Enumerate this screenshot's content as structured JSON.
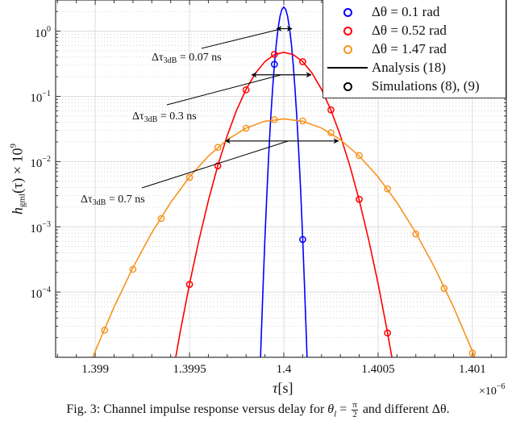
{
  "chart_data": {
    "type": "line",
    "xlabel": {
      "symbol": "τ",
      "unit": "[s]"
    },
    "x_multiplier": {
      "base": "×10",
      "exp": "−6"
    },
    "ylabel": {
      "base": "h",
      "sub": "gml",
      "arg": "(τ) × 10",
      "exp": "9"
    },
    "xlim": [
      1.39879,
      1.40118
    ],
    "ylim": [
      1e-05,
      3.0
    ],
    "yscale": "log",
    "grid": true,
    "legend_placement": "top-right",
    "x_ticks": [
      {
        "value": 1.399,
        "label": "1.399"
      },
      {
        "value": 1.3995,
        "label": "1.3995"
      },
      {
        "value": 1.4,
        "label": "1.4"
      },
      {
        "value": 1.4005,
        "label": "1.4005"
      },
      {
        "value": 1.401,
        "label": "1.401"
      }
    ],
    "y_ticks": [
      {
        "value": 1,
        "base": "10",
        "exp": "0"
      },
      {
        "value": 0.1,
        "base": "10",
        "exp": "−1"
      },
      {
        "value": 0.01,
        "base": "10",
        "exp": "−2"
      },
      {
        "value": 0.001,
        "base": "10",
        "exp": "−3"
      },
      {
        "value": 0.0001,
        "base": "10",
        "exp": "−4"
      }
    ],
    "series": [
      {
        "name": "Δθ = 0.1 rad",
        "color": "#0000ff",
        "analysis": [
          [
            1.39987,
            2.5e-06
          ],
          [
            1.39988,
            1.87e-05
          ],
          [
            1.39989,
            0.000122
          ],
          [
            1.3999,
            0.000675
          ],
          [
            1.39991,
            0.00318
          ],
          [
            1.39992,
            0.0127
          ],
          [
            1.39993,
            0.043
          ],
          [
            1.39994,
            0.1245
          ],
          [
            1.39995,
            0.305
          ],
          [
            1.39996,
            0.635
          ],
          [
            1.39997,
            1.12
          ],
          [
            1.39998,
            1.69
          ],
          [
            1.39999,
            2.16
          ],
          [
            1.4,
            2.34
          ],
          [
            1.40001,
            2.16
          ],
          [
            1.40002,
            1.69
          ],
          [
            1.40003,
            1.12
          ],
          [
            1.40004,
            0.635
          ],
          [
            1.40005,
            0.305
          ],
          [
            1.40006,
            0.1245
          ],
          [
            1.40007,
            0.043
          ],
          [
            1.40008,
            0.0127
          ],
          [
            1.40009,
            0.00318
          ],
          [
            1.4001,
            0.000675
          ],
          [
            1.40011,
            0.000122
          ],
          [
            1.40012,
            1.87e-05
          ],
          [
            1.40013,
            2.5e-06
          ]
        ],
        "simulation": [
          [
            1.39995,
            0.31
          ],
          [
            1.4001,
            0.00064
          ]
        ]
      },
      {
        "name": "Δθ = 0.52 rad",
        "color": "#ff0000",
        "analysis": [
          [
            1.3994,
            3.66e-06
          ],
          [
            1.39945,
            2.4e-05
          ],
          [
            1.3995,
            0.000134
          ],
          [
            1.39955,
            0.00063
          ],
          [
            1.3996,
            0.00254
          ],
          [
            1.39965,
            0.00864
          ],
          [
            1.3997,
            0.025
          ],
          [
            1.39975,
            0.0614
          ],
          [
            1.3998,
            0.128
          ],
          [
            1.39985,
            0.227
          ],
          [
            1.3999,
            0.342
          ],
          [
            1.39995,
            0.437
          ],
          [
            1.4,
            0.474
          ],
          [
            1.40005,
            0.437
          ],
          [
            1.4001,
            0.342
          ],
          [
            1.40015,
            0.227
          ],
          [
            1.4002,
            0.128
          ],
          [
            1.40025,
            0.0614
          ],
          [
            1.4003,
            0.025
          ],
          [
            1.40035,
            0.00864
          ],
          [
            1.4004,
            0.00254
          ],
          [
            1.40045,
            0.00063
          ],
          [
            1.4005,
            0.000134
          ],
          [
            1.40055,
            2.4e-05
          ],
          [
            1.4006,
            3.66e-06
          ]
        ],
        "simulation": [
          [
            1.39995,
            0.44
          ],
          [
            1.4001,
            0.34
          ],
          [
            1.3998,
            0.126
          ],
          [
            1.40025,
            0.062
          ],
          [
            1.39965,
            0.0086
          ],
          [
            1.4004,
            0.00264
          ],
          [
            1.3995,
            0.000131
          ],
          [
            1.40055,
            2.36e-05
          ]
        ]
      },
      {
        "name": "Δθ = 1.47 rad",
        "color": "#f7931e",
        "analysis": [
          [
            1.3989,
            2.2e-06
          ],
          [
            1.399,
            1.24e-05
          ],
          [
            1.3991,
            5.91e-05
          ],
          [
            1.3992,
            0.000238
          ],
          [
            1.3993,
            0.000814
          ],
          [
            1.3994,
            0.00236
          ],
          [
            1.3995,
            0.00582
          ],
          [
            1.3996,
            0.01218
          ],
          [
            1.3997,
            0.0216
          ],
          [
            1.3998,
            0.0326
          ],
          [
            1.3999,
            0.0416
          ],
          [
            1.4,
            0.0452
          ],
          [
            1.4001,
            0.0416
          ],
          [
            1.4002,
            0.0326
          ],
          [
            1.4003,
            0.0216
          ],
          [
            1.4004,
            0.01218
          ],
          [
            1.4005,
            0.00582
          ],
          [
            1.4006,
            0.00236
          ],
          [
            1.4007,
            0.000814
          ],
          [
            1.4008,
            0.000238
          ],
          [
            1.4009,
            5.91e-05
          ],
          [
            1.401,
            1.24e-05
          ],
          [
            1.4011,
            2.2e-06
          ]
        ],
        "simulation": [
          [
            1.39995,
            0.044
          ],
          [
            1.4001,
            0.042
          ],
          [
            1.3998,
            0.0325
          ],
          [
            1.40025,
            0.0277
          ],
          [
            1.39965,
            0.0165
          ],
          [
            1.4004,
            0.0124
          ],
          [
            1.3995,
            0.00573
          ],
          [
            1.40055,
            0.00382
          ],
          [
            1.39935,
            0.00134
          ],
          [
            1.4007,
            0.000776
          ],
          [
            1.3992,
            0.000223
          ],
          [
            1.40085,
            0.000114
          ],
          [
            1.39905,
            2.6e-05
          ],
          [
            1.401,
            1.16e-05
          ]
        ]
      }
    ],
    "legend": {
      "entries": [
        {
          "label": "Δθ = 0.1 rad",
          "kind": "marker",
          "color": "#0000ff"
        },
        {
          "label": "Δθ = 0.52 rad",
          "kind": "marker",
          "color": "#ff0000"
        },
        {
          "label": "Δθ = 1.47 rad",
          "kind": "marker",
          "color": "#f7931e"
        },
        {
          "label": "Analysis (18)",
          "kind": "line",
          "color": "#000000"
        },
        {
          "label": "Simulations (8), (9)",
          "kind": "marker",
          "color": "#000000"
        }
      ]
    },
    "annotations": [
      {
        "prefix": "Δτ",
        "sub": "3dB",
        "value": " = 0.07 ns",
        "arrow_y": 1.09,
        "arrow_x": [
          1.399962,
          1.400043
        ]
      },
      {
        "prefix": "Δτ",
        "sub": "3dB",
        "value": " = 0.3 ns",
        "arrow_y": 0.214,
        "arrow_x": [
          1.39983,
          1.400145
        ]
      },
      {
        "prefix": "Δτ",
        "sub": "3dB",
        "value": " = 0.7 ns",
        "arrow_y": 0.0207,
        "arrow_x": [
          1.39969,
          1.40029
        ]
      }
    ]
  },
  "caption": {
    "prefix": "Fig. 3: Channel impulse response versus delay for ",
    "theta": "θ",
    "theta_sub": "l",
    "equals": " = ",
    "frac_num": "π",
    "frac_den": "2",
    "suffix": " and different Δθ."
  }
}
